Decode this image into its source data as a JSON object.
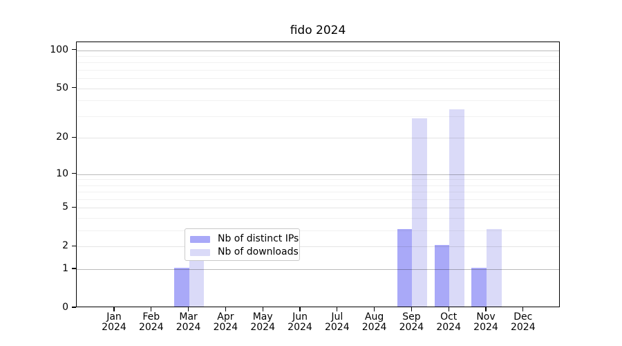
{
  "chart_data": {
    "type": "bar",
    "title": "fido 2024",
    "categories": [
      "Jan 2024",
      "Feb 2024",
      "Mar 2024",
      "Apr 2024",
      "May 2024",
      "Jun 2024",
      "Jul 2024",
      "Aug 2024",
      "Sep 2024",
      "Oct 2024",
      "Nov 2024",
      "Dec 2024"
    ],
    "series": [
      {
        "name": "Nb of distinct IPs",
        "color": "#a9a9f8",
        "values": [
          0,
          0,
          1,
          0,
          0,
          0,
          0,
          0,
          3,
          2,
          1,
          0
        ]
      },
      {
        "name": "Nb of downloads",
        "color": "#dadaf8",
        "values": [
          0,
          0,
          2,
          0,
          0,
          0,
          0,
          0,
          28,
          33,
          3,
          0
        ]
      }
    ],
    "y_scale": "log1p",
    "y_ticks": [
      0,
      1,
      2,
      5,
      10,
      20,
      50,
      100
    ],
    "y_gridlines_decade": [
      1,
      10,
      100
    ],
    "y_gridlines_medium": [
      2,
      5,
      20,
      50
    ],
    "y_gridlines_minor": [
      3,
      4,
      6,
      7,
      8,
      9,
      30,
      40,
      60,
      70,
      80,
      90
    ],
    "ylim": [
      0,
      115
    ],
    "grid": "on",
    "legend_position": "inside-bottom-center",
    "xlabel": "",
    "ylabel": ""
  },
  "colors": {
    "background": "#ffffff",
    "axis": "#000000",
    "text": "#000000",
    "legend_border": "#c9c9c9"
  }
}
